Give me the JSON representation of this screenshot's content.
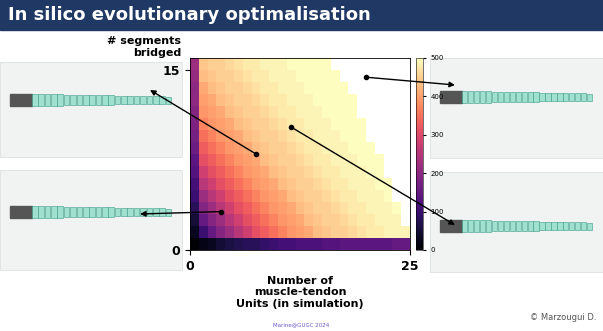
{
  "title": "In silico evolutionary optimalisation",
  "footer": "Marine@GUGC 2024",
  "credit": "© Marzougui D.",
  "chart_data": {
    "type": "heatmap",
    "ylabel": "# segments\nbridged",
    "xlabel": "Number of\nmuscle-tendon\nUnits (in simulation)",
    "x": [
      0,
      1,
      2,
      3,
      4,
      5,
      6,
      7,
      8,
      9,
      10,
      11,
      12,
      13,
      14,
      15,
      16,
      17,
      18,
      19,
      20,
      21,
      22,
      23,
      24
    ],
    "y": [
      0,
      1,
      2,
      3,
      4,
      5,
      6,
      7,
      8,
      9,
      10,
      11,
      12,
      13,
      14,
      15
    ],
    "cells": [
      [
        0,
        20,
        30,
        50,
        60,
        70,
        80,
        80,
        90,
        100,
        110,
        110,
        120,
        120,
        120,
        130,
        130,
        140,
        140,
        140,
        140,
        140,
        140,
        150,
        150
      ],
      [
        30,
        100,
        150,
        190,
        220,
        250,
        280,
        310,
        330,
        350,
        370,
        390,
        400,
        410,
        430,
        440,
        450,
        450,
        460,
        470,
        480,
        480,
        490,
        490,
        490
      ],
      [
        50,
        150,
        190,
        220,
        250,
        280,
        310,
        330,
        350,
        370,
        390,
        400,
        410,
        430,
        440,
        450,
        450,
        460,
        470,
        480,
        480,
        490,
        490,
        490,
        null
      ],
      [
        80,
        190,
        220,
        250,
        280,
        310,
        330,
        350,
        370,
        390,
        400,
        410,
        430,
        440,
        450,
        450,
        460,
        470,
        480,
        480,
        490,
        490,
        490,
        500,
        null
      ],
      [
        100,
        220,
        250,
        280,
        310,
        330,
        350,
        370,
        390,
        400,
        410,
        430,
        440,
        450,
        450,
        460,
        470,
        480,
        480,
        490,
        490,
        490,
        500,
        null,
        null
      ],
      [
        110,
        250,
        280,
        310,
        330,
        350,
        370,
        390,
        400,
        410,
        430,
        440,
        450,
        450,
        460,
        470,
        480,
        480,
        490,
        490,
        490,
        500,
        500,
        null,
        null
      ],
      [
        130,
        280,
        310,
        330,
        350,
        370,
        390,
        400,
        410,
        430,
        440,
        450,
        450,
        460,
        470,
        480,
        480,
        490,
        490,
        490,
        500,
        500,
        null,
        null,
        null
      ],
      [
        140,
        310,
        330,
        350,
        370,
        390,
        400,
        410,
        430,
        440,
        450,
        450,
        460,
        470,
        480,
        480,
        490,
        490,
        490,
        500,
        500,
        500,
        null,
        null,
        null
      ],
      [
        160,
        330,
        350,
        370,
        390,
        400,
        410,
        430,
        440,
        450,
        450,
        460,
        470,
        480,
        480,
        490,
        490,
        490,
        500,
        500,
        500,
        null,
        null,
        null,
        null
      ],
      [
        170,
        350,
        370,
        390,
        400,
        410,
        430,
        440,
        450,
        450,
        460,
        470,
        480,
        480,
        490,
        490,
        490,
        500,
        500,
        500,
        null,
        null,
        null,
        null,
        null
      ],
      [
        180,
        370,
        390,
        400,
        410,
        430,
        440,
        450,
        450,
        460,
        470,
        480,
        480,
        490,
        490,
        490,
        500,
        500,
        500,
        500,
        null,
        null,
        null,
        null,
        null
      ],
      [
        190,
        390,
        400,
        410,
        430,
        440,
        450,
        450,
        460,
        470,
        480,
        480,
        490,
        490,
        490,
        500,
        500,
        500,
        500,
        null,
        null,
        null,
        null,
        null,
        null
      ],
      [
        200,
        400,
        410,
        430,
        440,
        450,
        450,
        460,
        470,
        480,
        480,
        490,
        490,
        490,
        500,
        500,
        500,
        500,
        500,
        null,
        null,
        null,
        null,
        null,
        null
      ],
      [
        200,
        410,
        430,
        440,
        450,
        450,
        460,
        470,
        480,
        480,
        490,
        490,
        490,
        500,
        500,
        500,
        500,
        500,
        null,
        null,
        null,
        null,
        null,
        null,
        null
      ],
      [
        210,
        430,
        440,
        450,
        450,
        460,
        470,
        480,
        480,
        490,
        490,
        490,
        500,
        500,
        500,
        500,
        500,
        null,
        null,
        null,
        null,
        null,
        null,
        null,
        null
      ],
      [
        220,
        440,
        450,
        450,
        460,
        470,
        480,
        480,
        490,
        490,
        490,
        500,
        500,
        500,
        500,
        500,
        null,
        null,
        null,
        null,
        null,
        null,
        null,
        null,
        null
      ]
    ],
    "xlim": [
      0,
      25
    ],
    "ylim": [
      0,
      16
    ],
    "xticks": [
      0,
      25
    ],
    "yticks": [
      0,
      15
    ],
    "colorbar_range": [
      0,
      500
    ],
    "colorbar_ticks": [
      0,
      100,
      200,
      300,
      400,
      500
    ]
  }
}
